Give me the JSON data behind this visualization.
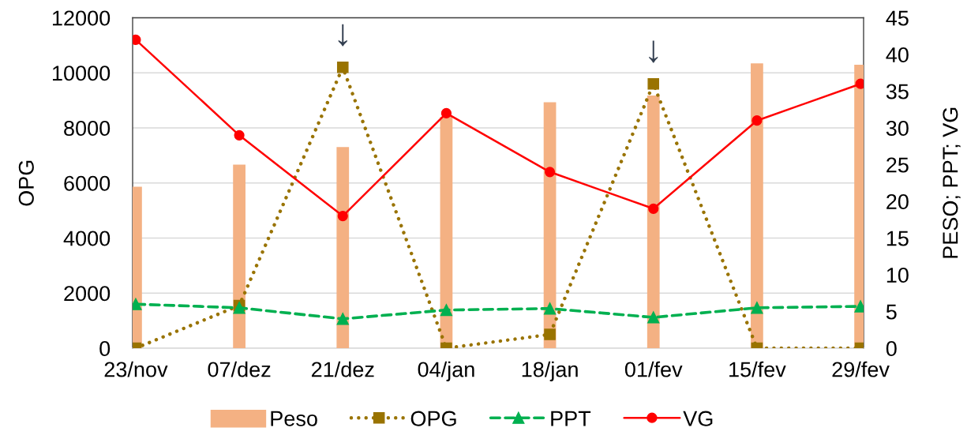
{
  "chart_data": {
    "type": "line",
    "categories": [
      "23/nov",
      "07/dez",
      "21/dez",
      "04/jan",
      "18/jan",
      "01/fev",
      "15/fev",
      "29/fev"
    ],
    "series": [
      {
        "name": "Peso",
        "type": "bar",
        "axis": "y2",
        "color": "#f4b183",
        "values": [
          22,
          25,
          27.4,
          31.5,
          33.5,
          34.4,
          38.8,
          38.6
        ]
      },
      {
        "name": "OPG",
        "color": "#997300",
        "marker": "square",
        "line_style": "dotted",
        "values": [
          0,
          1550,
          10200,
          0,
          500,
          9600,
          0,
          0
        ]
      },
      {
        "name": "PPT",
        "axis": "y2",
        "color": "#00b050",
        "marker": "triangle",
        "line_style": "dashed",
        "values": [
          6,
          5.5,
          4,
          5.2,
          5.4,
          4.2,
          5.5,
          5.7
        ]
      },
      {
        "name": "VG",
        "axis": "y2",
        "color": "#ff0000",
        "marker": "circle",
        "line_style": "solid",
        "values": [
          42,
          29,
          18,
          32,
          24,
          19,
          31,
          36
        ]
      }
    ],
    "ylabel": "OPG",
    "y2label": "PESO; PPT; VG",
    "ylim": [
      0,
      12000
    ],
    "yticks": [
      0,
      2000,
      4000,
      6000,
      8000,
      10000,
      12000
    ],
    "y2lim": [
      0,
      45
    ],
    "y2ticks": [
      0,
      5,
      10,
      15,
      20,
      25,
      30,
      35,
      40,
      45
    ],
    "grid": "y",
    "legend": "bottom",
    "annotations": [
      {
        "text": "↓",
        "x": "21/dez",
        "y": 10200
      },
      {
        "text": "↓",
        "x": "01/fev",
        "y": 9600
      }
    ]
  }
}
